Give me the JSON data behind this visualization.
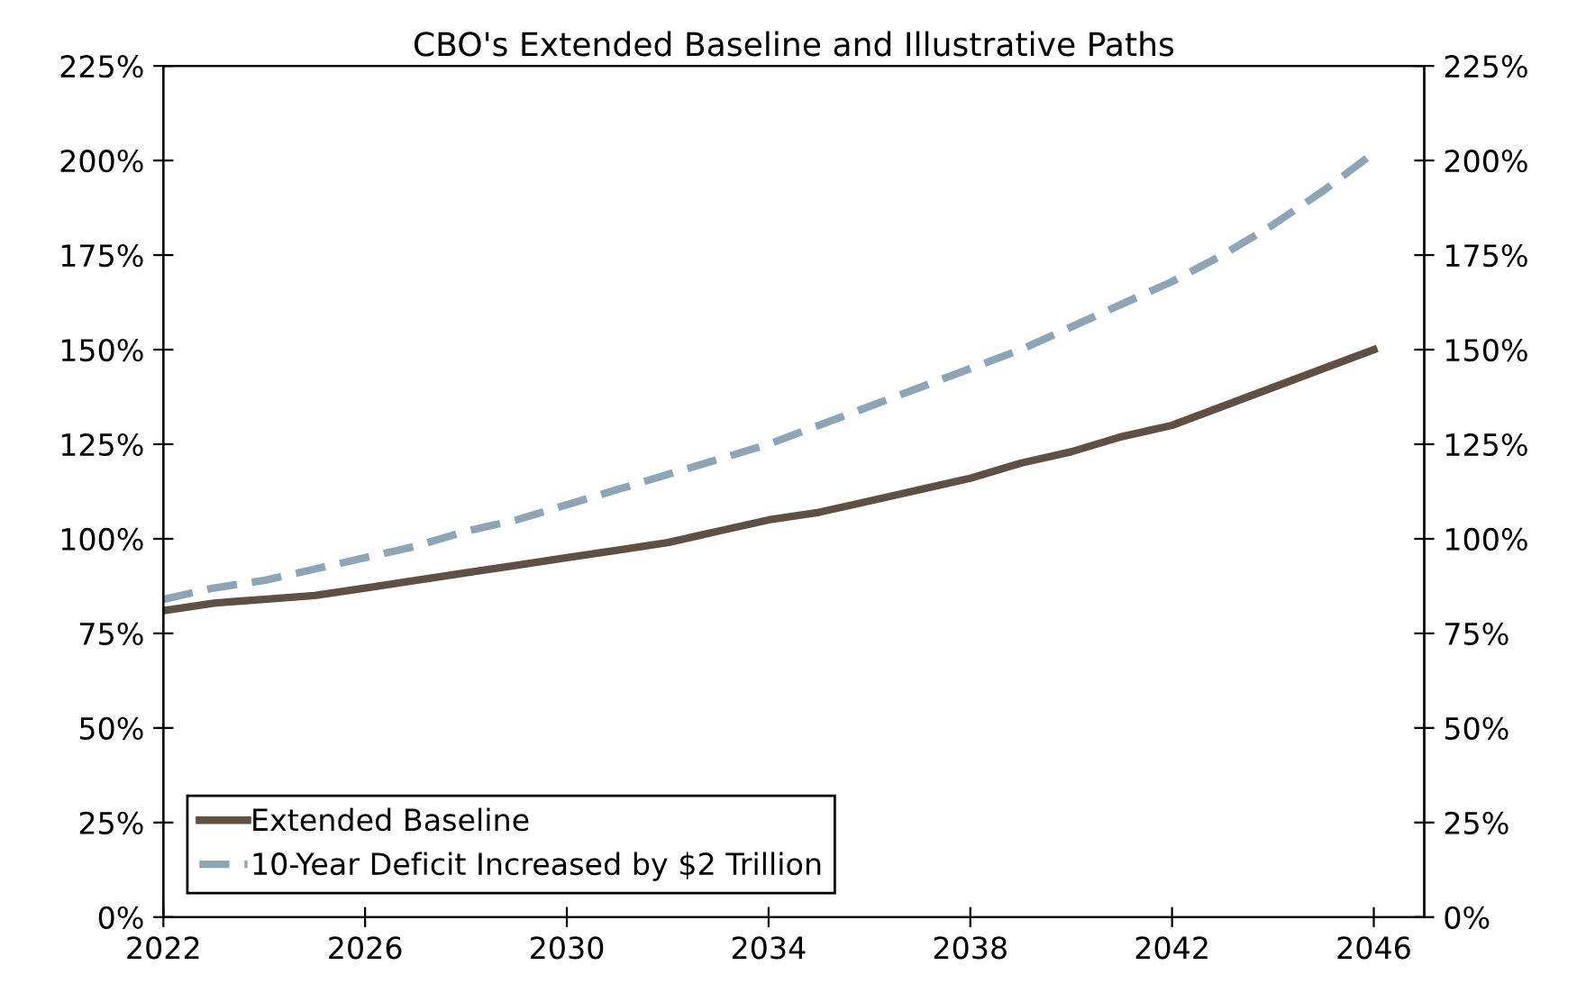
{
  "chart_data": {
    "type": "line",
    "title": "CBO's Extended Baseline and Illustrative Paths",
    "x": [
      2022,
      2023,
      2024,
      2025,
      2026,
      2027,
      2028,
      2029,
      2030,
      2031,
      2032,
      2033,
      2034,
      2035,
      2036,
      2037,
      2038,
      2039,
      2040,
      2041,
      2042,
      2043,
      2044,
      2045,
      2046
    ],
    "series": [
      {
        "name": "Extended Baseline",
        "color": "#5f5046",
        "line_style": "solid",
        "values": [
          81,
          83,
          84,
          85,
          87,
          89,
          91,
          93,
          95,
          97,
          99,
          102,
          105,
          107,
          110,
          113,
          116,
          120,
          123,
          127,
          130,
          135,
          140,
          145,
          150
        ]
      },
      {
        "name": "10-Year Deficit Increased by $2 Trillion",
        "color": "#8ea5b5",
        "line_style": "dashed",
        "values": [
          84,
          87,
          89,
          92,
          95,
          98,
          102,
          105,
          109,
          113,
          117,
          121,
          125,
          130,
          135,
          140,
          145,
          150,
          156,
          162,
          168,
          175,
          183,
          192,
          202
        ]
      }
    ],
    "xlim": [
      2022,
      2047
    ],
    "xticks": [
      2022,
      2026,
      2030,
      2034,
      2038,
      2042,
      2046
    ],
    "ylim": [
      0,
      225
    ],
    "yticks": [
      {
        "value": 0,
        "label": "0%"
      },
      {
        "value": 25,
        "label": "25%"
      },
      {
        "value": 50,
        "label": "50%"
      },
      {
        "value": 75,
        "label": "75%"
      },
      {
        "value": 100,
        "label": "100%"
      },
      {
        "value": 125,
        "label": "125%"
      },
      {
        "value": 150,
        "label": "150%"
      },
      {
        "value": 175,
        "label": "175%"
      },
      {
        "value": 200,
        "label": "200%"
      },
      {
        "value": 225,
        "label": "225%"
      }
    ],
    "y2lim": [
      0,
      225
    ],
    "y2ticks": [
      {
        "value": 0,
        "label": "0%"
      },
      {
        "value": 25,
        "label": "25%"
      },
      {
        "value": 50,
        "label": "50%"
      },
      {
        "value": 75,
        "label": "75%"
      },
      {
        "value": 100,
        "label": "100%"
      },
      {
        "value": 125,
        "label": "125%"
      },
      {
        "value": 150,
        "label": "150%"
      },
      {
        "value": 175,
        "label": "175%"
      },
      {
        "value": 200,
        "label": "200%"
      },
      {
        "value": 225,
        "label": "225%"
      }
    ],
    "grid": false,
    "legend": "bottom left",
    "marker": "none"
  }
}
